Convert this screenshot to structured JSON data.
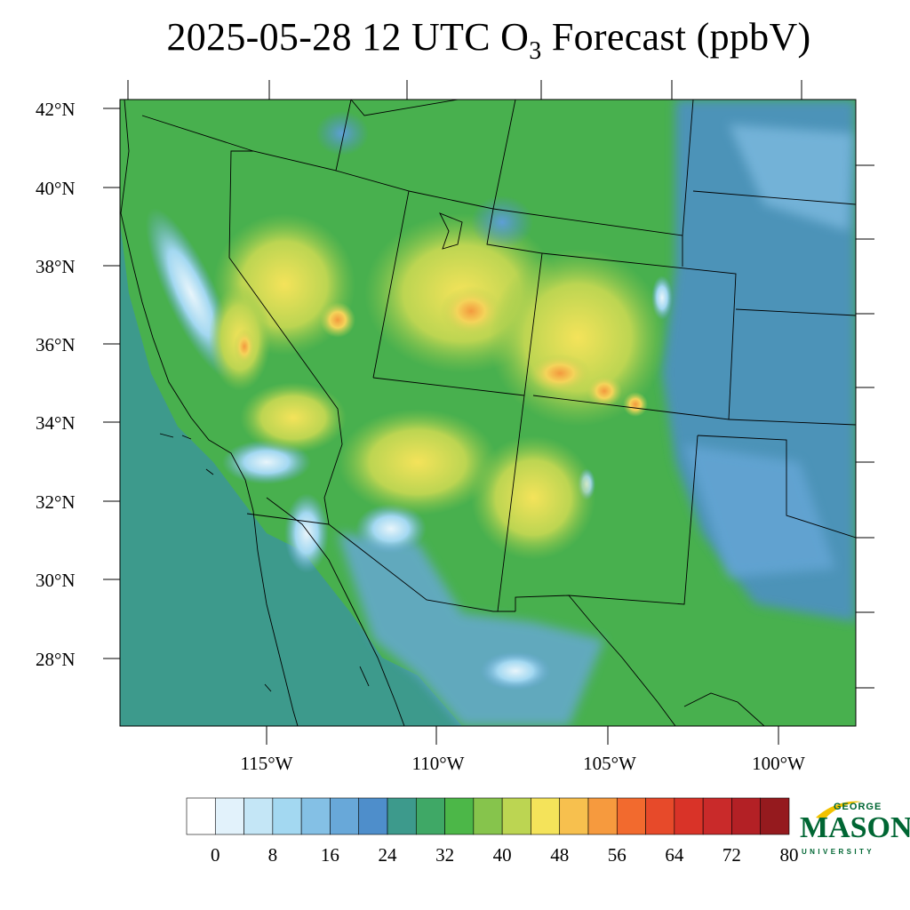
{
  "title": {
    "prefix": "2025-05-28 12 UTC O",
    "subscript": "3",
    "suffix": " Forecast (ppbV)"
  },
  "map": {
    "lat_labels": [
      "42°N",
      "40°N",
      "38°N",
      "36°N",
      "34°N",
      "32°N",
      "30°N",
      "28°N"
    ],
    "lon_labels": [
      "115°W",
      "110°W",
      "105°W",
      "100°W"
    ],
    "background_color": "#3d9a8c"
  },
  "colorbar": {
    "tick_labels": [
      "0",
      "8",
      "16",
      "24",
      "32",
      "40",
      "48",
      "56",
      "64",
      "72",
      "80"
    ],
    "colors": [
      "#ffffff",
      "#e2f2fb",
      "#c4e6f6",
      "#a3d8f1",
      "#84c0e5",
      "#68a8d9",
      "#4e8ecb",
      "#3d9a8c",
      "#3fa866",
      "#4cb748",
      "#86c44c",
      "#bcd552",
      "#f4e35a",
      "#f7c04e",
      "#f69a3e",
      "#f26a2e",
      "#e74a2a",
      "#d93328",
      "#c92a2a",
      "#b32025",
      "#951a1e"
    ]
  },
  "logo": {
    "line1": "GEORGE",
    "line2": "MASON",
    "line3": "UNIVERSITY",
    "accent_color": "#f2c200",
    "brand_color": "#006633"
  }
}
